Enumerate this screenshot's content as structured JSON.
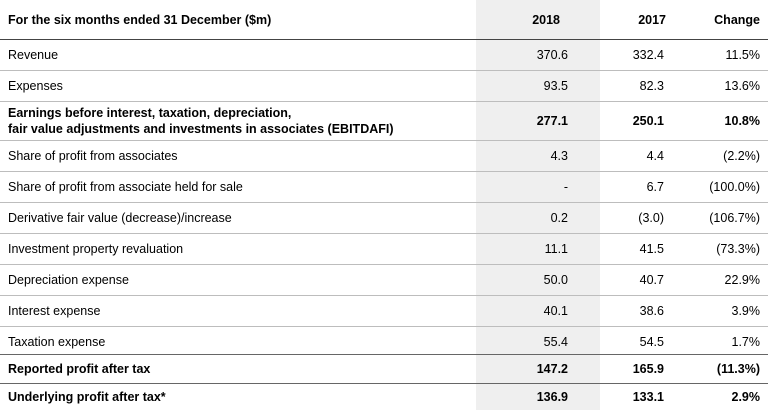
{
  "header": {
    "title": "For the six months ended 31 December ($m)",
    "col_2018": "2018",
    "col_2017": "2017",
    "col_change": "Change"
  },
  "rows": [
    {
      "label": "Revenue",
      "v2018": "370.6",
      "v2017": "332.4",
      "change": "11.5%"
    },
    {
      "label": "Expenses",
      "v2018": "93.5",
      "v2017": "82.3",
      "change": "13.6%"
    },
    {
      "label": "Earnings before interest, taxation, depreciation,",
      "label2": "fair value adjustments and investments in associates (EBITDAFI)",
      "v2018": "277.1",
      "v2017": "250.1",
      "change": "10.8%"
    },
    {
      "label": "Share of profit from associates",
      "v2018": "4.3",
      "v2017": "4.4",
      "change": "(2.2%)"
    },
    {
      "label": "Share of profit from associate held for sale",
      "v2018": "-",
      "v2017": "6.7",
      "change": "(100.0%)"
    },
    {
      "label": "Derivative fair value (decrease)/increase",
      "v2018": "0.2",
      "v2017": "(3.0)",
      "change": "(106.7%)"
    },
    {
      "label": "Investment property revaluation",
      "v2018": "11.1",
      "v2017": "41.5",
      "change": "(73.3%)"
    },
    {
      "label": "Depreciation expense",
      "v2018": "50.0",
      "v2017": "40.7",
      "change": "22.9%"
    },
    {
      "label": "Interest expense",
      "v2018": "40.1",
      "v2017": "38.6",
      "change": "3.9%"
    },
    {
      "label": "Taxation expense",
      "v2018": "55.4",
      "v2017": "54.5",
      "change": "1.7%"
    },
    {
      "label": "Reported profit after tax",
      "v2018": "147.2",
      "v2017": "165.9",
      "change": "(11.3%)"
    },
    {
      "label": "Underlying profit after tax*",
      "v2018": "136.9",
      "v2017": "133.1",
      "change": "2.9%"
    }
  ]
}
